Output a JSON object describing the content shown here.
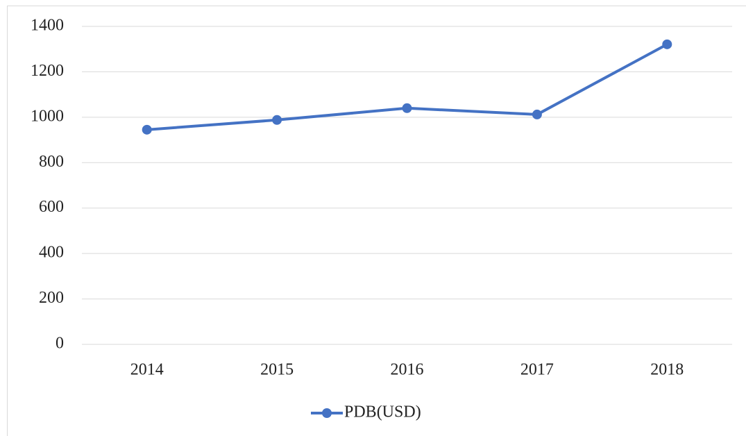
{
  "chart_data": {
    "type": "line",
    "categories": [
      "2014",
      "2015",
      "2016",
      "2017",
      "2018"
    ],
    "series": [
      {
        "name": "PDB(USD)",
        "color": "#4472c4",
        "values": [
          945,
          988,
          1040,
          1012,
          1321
        ]
      }
    ],
    "ylim": [
      0,
      1400
    ],
    "yticks": [
      0,
      200,
      400,
      600,
      800,
      1000,
      1200,
      1400
    ],
    "grid": true,
    "legend": "bottom"
  }
}
